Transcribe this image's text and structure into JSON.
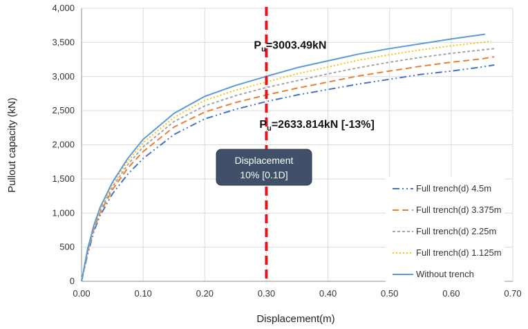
{
  "chart_data": {
    "type": "line",
    "title": "",
    "xlabel": "Displacement(m)",
    "ylabel": "Pullout capacity (kN)",
    "xlim": [
      0,
      0.7
    ],
    "ylim": [
      0,
      4000
    ],
    "x_ticks": [
      "0.00",
      "0.10",
      "0.20",
      "0.30",
      "0.40",
      "0.50",
      "0.60",
      "0.70"
    ],
    "y_ticks": [
      "0",
      "500",
      "1,000",
      "1,500",
      "2,000",
      "2,500",
      "3,000",
      "3,500",
      "4,000"
    ],
    "grid": {
      "x": true,
      "y": true
    },
    "legend_position": "bottom-right",
    "series": [
      {
        "name": "Full trench(d) 4.5m",
        "color": "#4472C4",
        "dash": "dash-dot-dot",
        "x": [
          0,
          0.01,
          0.02,
          0.03,
          0.05,
          0.075,
          0.1,
          0.15,
          0.2,
          0.25,
          0.3,
          0.35,
          0.4,
          0.45,
          0.5,
          0.55,
          0.6,
          0.65,
          0.67
        ],
        "y": [
          0,
          400,
          730,
          960,
          1280,
          1570,
          1800,
          2150,
          2380,
          2520,
          2634,
          2730,
          2810,
          2890,
          2960,
          3030,
          3080,
          3140,
          3170
        ]
      },
      {
        "name": "Full trench(d) 3.375m",
        "color": "#ED7D31",
        "dash": "dash",
        "x": [
          0,
          0.01,
          0.02,
          0.03,
          0.05,
          0.075,
          0.1,
          0.15,
          0.2,
          0.25,
          0.3,
          0.35,
          0.4,
          0.45,
          0.5,
          0.55,
          0.6,
          0.65,
          0.67
        ],
        "y": [
          0,
          430,
          760,
          1000,
          1340,
          1660,
          1900,
          2260,
          2480,
          2620,
          2730,
          2830,
          2920,
          3010,
          3080,
          3150,
          3210,
          3260,
          3290
        ]
      },
      {
        "name": "Full trench(d) 2.25m",
        "color": "#A5A5A5",
        "dash": "short-dash",
        "x": [
          0,
          0.01,
          0.02,
          0.03,
          0.05,
          0.075,
          0.1,
          0.15,
          0.2,
          0.25,
          0.3,
          0.35,
          0.4,
          0.45,
          0.5,
          0.55,
          0.6,
          0.65,
          0.67
        ],
        "y": [
          0,
          450,
          780,
          1030,
          1380,
          1710,
          1970,
          2340,
          2570,
          2720,
          2840,
          2940,
          3040,
          3130,
          3210,
          3280,
          3340,
          3390,
          3410
        ]
      },
      {
        "name": "Full trench(d) 1.125m",
        "color": "#FFC000",
        "dash": "dot",
        "x": [
          0,
          0.01,
          0.02,
          0.03,
          0.05,
          0.075,
          0.1,
          0.15,
          0.2,
          0.25,
          0.3,
          0.35,
          0.4,
          0.45,
          0.5,
          0.55,
          0.6,
          0.65,
          0.665
        ],
        "y": [
          0,
          470,
          800,
          1060,
          1420,
          1760,
          2030,
          2400,
          2650,
          2800,
          2920,
          3040,
          3140,
          3240,
          3320,
          3390,
          3450,
          3500,
          3520
        ]
      },
      {
        "name": "Without trench",
        "color": "#5B9BD5",
        "dash": "solid",
        "x": [
          0,
          0.01,
          0.02,
          0.03,
          0.05,
          0.075,
          0.1,
          0.15,
          0.2,
          0.25,
          0.3,
          0.35,
          0.4,
          0.45,
          0.5,
          0.55,
          0.6,
          0.655
        ],
        "y": [
          0,
          480,
          820,
          1080,
          1450,
          1800,
          2080,
          2460,
          2710,
          2870,
          3003,
          3130,
          3230,
          3330,
          3410,
          3480,
          3550,
          3620
        ]
      }
    ],
    "reference_line": {
      "x": 0.3,
      "color": "#E8141A"
    },
    "annotations": {
      "upper": {
        "main": "P",
        "sub": "u",
        "rest": "=3003.49kN",
        "x": 0.3,
        "y": 3003.49
      },
      "lower": {
        "main": "P",
        "sub": "u",
        "rest": "=2633.814kN [-13%]",
        "x": 0.3,
        "y": 2633.814
      }
    },
    "callout": {
      "line1": "Displacement",
      "line2": "10% [0.1D]",
      "fill": "#3F5068"
    }
  }
}
